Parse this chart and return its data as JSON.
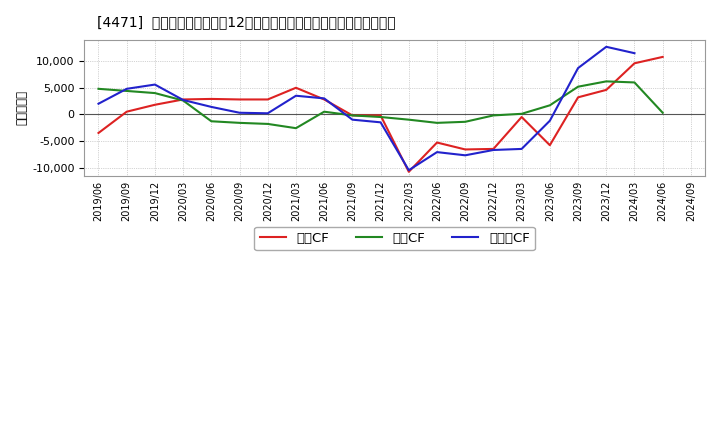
{
  "title": "[4471]  キャッシュフローの12か月移動合計の対前年同期増減額の推移",
  "ylabel": "（百万円）",
  "background_color": "#ffffff",
  "plot_bg_color": "#ffffff",
  "grid_color": "#aaaaaa",
  "ylim": [
    -11500,
    14000
  ],
  "yticks": [
    -10000,
    -5000,
    0,
    5000,
    10000
  ],
  "dates": [
    "2019/06",
    "2019/09",
    "2019/12",
    "2020/03",
    "2020/06",
    "2020/09",
    "2020/12",
    "2021/03",
    "2021/06",
    "2021/09",
    "2021/12",
    "2022/03",
    "2022/06",
    "2022/09",
    "2022/12",
    "2023/03",
    "2023/06",
    "2023/09",
    "2023/12",
    "2024/03",
    "2024/06",
    "2024/09"
  ],
  "eigyou_cf": [
    -3500,
    500,
    1800,
    2800,
    2900,
    2800,
    2800,
    5000,
    2800,
    -200,
    -200,
    -10800,
    -5300,
    -6600,
    -6500,
    -500,
    -5800,
    3200,
    4600,
    9600,
    10800,
    null
  ],
  "toshi_cf": [
    4800,
    4400,
    4000,
    2600,
    -1300,
    -1600,
    -1800,
    -2600,
    500,
    -200,
    -500,
    -1000,
    -1600,
    -1400,
    -200,
    100,
    1700,
    5200,
    6200,
    6000,
    300,
    null
  ],
  "free_cf": [
    2000,
    4800,
    5600,
    2700,
    1400,
    300,
    200,
    3500,
    3000,
    -1000,
    -1500,
    -10500,
    -7100,
    -7700,
    -6700,
    -6500,
    -1200,
    8700,
    12700,
    11500,
    null,
    null
  ],
  "series_colors": {
    "eigyou": "#dd2222",
    "toshi": "#228822",
    "free": "#2222cc"
  },
  "legend_labels": {
    "eigyou": "営業CF",
    "toshi": "投資CF",
    "free": "フリーCF"
  }
}
